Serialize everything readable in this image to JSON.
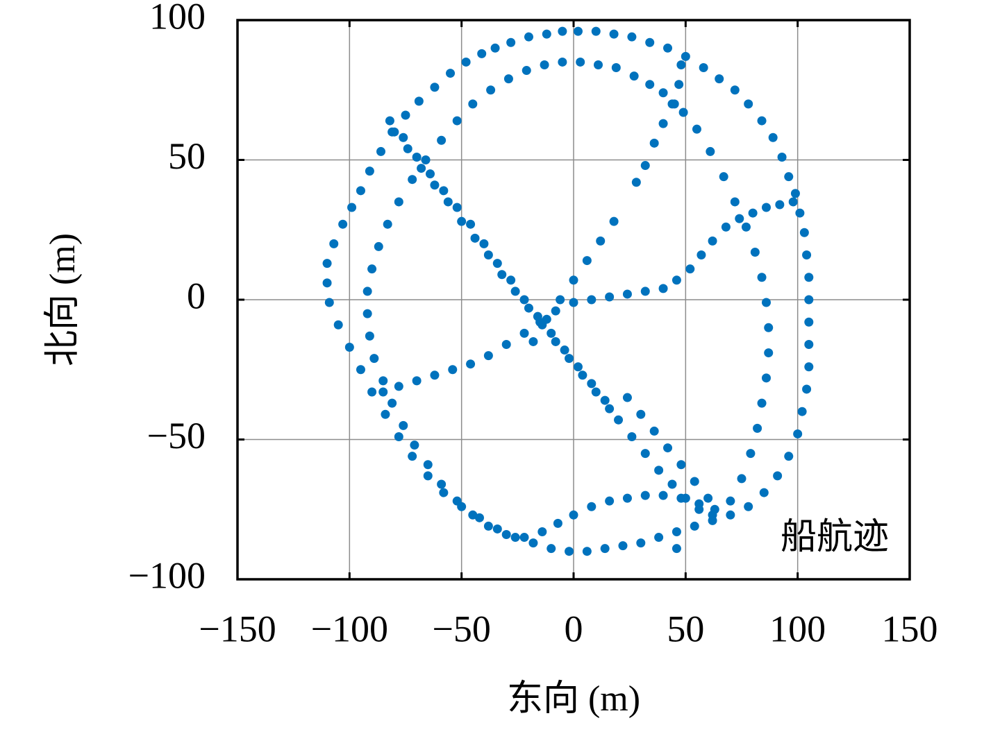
{
  "chart_data": {
    "type": "scatter",
    "xlabel": "东向 (m)",
    "ylabel": "北向 (m)",
    "xlim": [
      -150,
      150
    ],
    "ylim": [
      -100,
      100
    ],
    "xticks": [
      {
        "value": -150,
        "label": "−150"
      },
      {
        "value": -100,
        "label": "−100"
      },
      {
        "value": -50,
        "label": "−50"
      },
      0,
      50,
      100,
      150
    ],
    "yticks": [
      {
        "value": -100,
        "label": "−100"
      },
      {
        "value": -50,
        "label": "−50"
      },
      0,
      50,
      100
    ],
    "grid": true,
    "legend": "lower right",
    "x": [
      -35,
      -28,
      -20,
      -12,
      -5,
      2,
      10,
      18,
      26,
      34,
      42,
      50,
      58,
      65,
      72,
      78,
      84,
      89,
      93,
      96,
      99,
      101,
      103,
      104,
      105,
      105,
      105,
      105,
      105,
      104,
      102,
      100,
      96,
      91,
      85,
      78,
      70,
      62,
      54,
      46,
      38,
      30,
      22,
      14,
      6,
      -2,
      -10,
      -18,
      -26,
      -34,
      -42,
      -50,
      -58,
      -65,
      -72,
      -78,
      -84,
      -90,
      -95,
      -100,
      -105,
      -109,
      -110,
      -110,
      -107,
      -103,
      -99,
      -95,
      -91,
      -86,
      -81,
      -75,
      -69,
      -62,
      -55,
      -48,
      -41,
      -5,
      3,
      11,
      19,
      27,
      34,
      40,
      45,
      -13,
      -21,
      -29,
      -37,
      -45,
      -52,
      -59,
      -66,
      -72,
      -78,
      -83,
      -87,
      -90,
      -92,
      -92,
      -91,
      -89,
      -85,
      -81,
      -76,
      -71,
      -65,
      -59,
      -52,
      -45,
      -38,
      -30,
      -22,
      -14,
      -7,
      0,
      8,
      16,
      24,
      32,
      40,
      48,
      56,
      63,
      70,
      75,
      79,
      82,
      84,
      86,
      87,
      87,
      86,
      84,
      81,
      77,
      72,
      67,
      61,
      55,
      49,
      -82,
      -76,
      -70,
      -64,
      -58,
      -52,
      -46,
      -40,
      -34,
      -28,
      -22,
      -16,
      -10,
      -4,
      2,
      8,
      14,
      20,
      26,
      32,
      38,
      44,
      50,
      56,
      62,
      -80,
      -74,
      -68,
      -62,
      -56,
      -50,
      -44,
      -38,
      -32,
      -26,
      -20,
      -14,
      -8,
      -2,
      4,
      10,
      16,
      24,
      30,
      36,
      42,
      48,
      54,
      60,
      -85,
      -78,
      -70,
      -62,
      -54,
      -46,
      -38,
      -30,
      -22,
      -15,
      -8,
      0,
      8,
      16,
      24,
      32,
      40,
      46,
      52,
      57,
      62,
      68,
      74,
      80,
      86,
      92,
      98,
      -18,
      -12,
      -6,
      0,
      6,
      12,
      18,
      28,
      32,
      36,
      40,
      44,
      47,
      48,
      46
    ],
    "series": [
      {
        "name": "船航迹",
        "color": "#0072bd",
        "values": [
          90,
          92,
          94,
          95,
          96,
          96,
          96,
          95,
          94,
          92,
          90,
          87,
          83,
          79,
          75,
          70,
          64,
          58,
          51,
          44,
          38,
          31,
          24,
          16,
          8,
          0,
          -8,
          -16,
          -24,
          -32,
          -40,
          -48,
          -56,
          -63,
          -69,
          -74,
          -77,
          -79,
          -81,
          -83,
          -85,
          -87,
          -88,
          -89,
          -90,
          -90,
          -89,
          -87,
          -85,
          -82,
          -78,
          -74,
          -69,
          -63,
          -56,
          -49,
          -41,
          -33,
          -25,
          -17,
          -9,
          -1,
          6,
          13,
          20,
          27,
          33,
          39,
          46,
          53,
          60,
          66,
          71,
          76,
          81,
          85,
          88,
          85,
          85,
          84,
          83,
          80,
          77,
          74,
          70,
          84,
          82,
          79,
          75,
          70,
          64,
          57,
          50,
          43,
          35,
          27,
          19,
          11,
          3,
          -5,
          -13,
          -21,
          -29,
          -37,
          -45,
          -52,
          -59,
          -66,
          -72,
          -77,
          -81,
          -84,
          -85,
          -83,
          -80,
          -77,
          -74,
          -72,
          -71,
          -70,
          -70,
          -71,
          -73,
          -75,
          -72,
          -64,
          -55,
          -46,
          -37,
          -28,
          -19,
          -10,
          -1,
          8,
          17,
          26,
          35,
          44,
          53,
          61,
          67,
          64,
          58,
          51,
          45,
          39,
          33,
          27,
          20,
          13,
          7,
          0,
          -6,
          -12,
          -18,
          -24,
          -30,
          -36,
          -43,
          -49,
          -55,
          -61,
          -66,
          -71,
          -75,
          -77,
          60,
          54,
          47,
          41,
          35,
          28,
          22,
          16,
          9,
          3,
          -3,
          -9,
          -15,
          -21,
          -27,
          -33,
          -39,
          -35,
          -41,
          -47,
          -53,
          -59,
          -65,
          -71,
          -33,
          -31,
          -29,
          -27,
          -25,
          -23,
          -20,
          -16,
          -12,
          -8,
          -4,
          -1,
          0,
          1,
          2,
          3,
          4,
          7,
          11,
          16,
          21,
          26,
          29,
          31,
          33,
          34,
          35,
          -15,
          -7,
          0,
          7,
          14,
          21,
          28,
          42,
          48,
          56,
          63,
          70,
          77,
          84,
          -89
        ]
      }
    ]
  }
}
